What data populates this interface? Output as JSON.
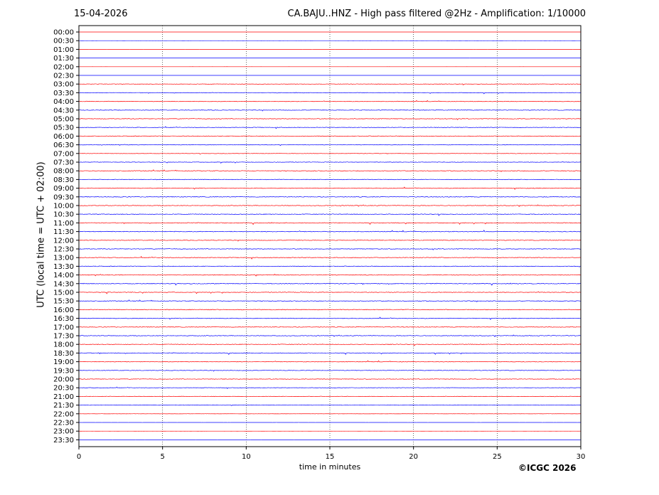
{
  "header": {
    "date": "15-04-2026",
    "title": "CA.BAJU..HNZ - High pass filtered @2Hz - Amplification: 1/10000"
  },
  "credit": "©ICGC 2026",
  "chart_data": {
    "type": "line",
    "title": "CA.BAJU..HNZ - High pass filtered @2Hz - Amplification: 1/10000",
    "xlabel": "time in minutes",
    "ylabel": "UTC (local time = UTC + 02:00)",
    "xlim": [
      0,
      30
    ],
    "x_ticks": [
      "0",
      "5",
      "10",
      "15",
      "20",
      "25",
      "30"
    ],
    "x_tick_values": [
      0,
      5,
      10,
      15,
      20,
      25,
      30
    ],
    "y_tick_labels": [
      "00:00",
      "00:30",
      "01:00",
      "01:30",
      "02:00",
      "02:30",
      "03:00",
      "03:30",
      "04:00",
      "04:30",
      "05:00",
      "05:30",
      "06:00",
      "06:30",
      "07:00",
      "07:30",
      "08:00",
      "08:30",
      "09:00",
      "09:30",
      "10:00",
      "10:30",
      "11:00",
      "11:30",
      "12:00",
      "12:30",
      "13:00",
      "13:30",
      "14:00",
      "14:30",
      "15:00",
      "15:30",
      "16:00",
      "16:30",
      "17:00",
      "17:30",
      "18:00",
      "18:30",
      "19:00",
      "19:30",
      "20:00",
      "20:30",
      "21:00",
      "21:30",
      "22:00",
      "22:30",
      "23:00",
      "23:30"
    ],
    "grid": "vertical dotted lines at each x tick",
    "series_colors": [
      "#ff0000",
      "#0000ff"
    ],
    "color_pattern": "traces alternate red/blue starting with red at 00:00",
    "trace_activity": [
      0.02,
      0.03,
      0.02,
      0.02,
      0.02,
      0.04,
      0.35,
      0.4,
      0.45,
      0.5,
      0.5,
      0.45,
      0.5,
      0.4,
      0.3,
      0.4,
      0.5,
      0.45,
      0.5,
      0.55,
      0.5,
      0.5,
      0.55,
      0.55,
      0.5,
      0.5,
      0.55,
      0.5,
      0.55,
      0.55,
      0.5,
      0.5,
      0.55,
      0.5,
      0.5,
      0.5,
      0.5,
      0.5,
      0.5,
      0.45,
      0.45,
      0.35,
      0.35,
      0.3,
      0.15,
      0.05,
      0.04,
      0.02
    ]
  }
}
